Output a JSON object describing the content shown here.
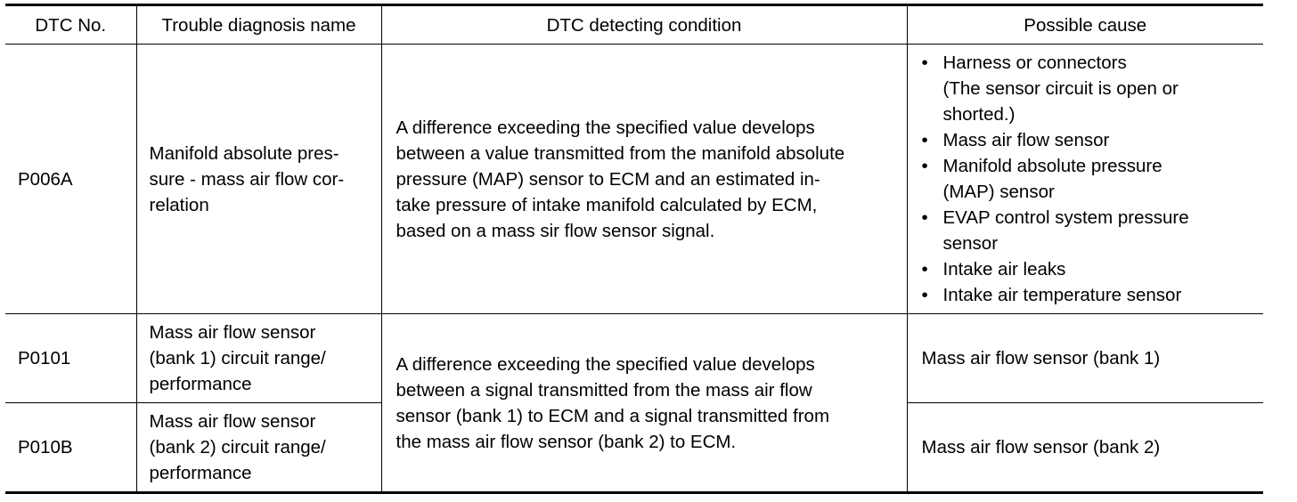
{
  "table": {
    "headers": [
      "DTC No.",
      "Trouble diagnosis name",
      "DTC detecting condition",
      "Possible cause"
    ],
    "bullet_glyph": "•",
    "rows": [
      {
        "code": "P006A",
        "name": "Manifold absolute pres-\nsure - mass air flow cor-\nrelation",
        "condition": "A difference exceeding the specified value develops\nbetween a value transmitted from the manifold absolute\npressure (MAP) sensor to ECM and an estimated in-\ntake pressure of intake manifold calculated by ECM,\nbased on a mass sir flow sensor signal.",
        "causes": [
          "Harness or connectors\n(The sensor circuit is open or\nshorted.)",
          "Mass air flow sensor",
          "Manifold absolute pressure\n(MAP) sensor",
          "EVAP control system pressure\nsensor",
          "Intake air leaks",
          "Intake air temperature sensor"
        ]
      },
      {
        "code": "P0101",
        "name": "Mass air flow sensor\n(bank 1) circuit range/\nperformance",
        "condition": "A difference exceeding the specified value develops\nbetween a signal transmitted from the mass air flow\nsensor (bank 1) to ECM and a signal transmitted from\nthe mass air flow sensor (bank 2) to ECM.",
        "cause": "Mass air flow sensor (bank 1)"
      },
      {
        "code": "P010B",
        "name": "Mass air flow sensor\n(bank 2) circuit range/\nperformance",
        "cause": "Mass air flow sensor (bank 2)"
      }
    ]
  }
}
